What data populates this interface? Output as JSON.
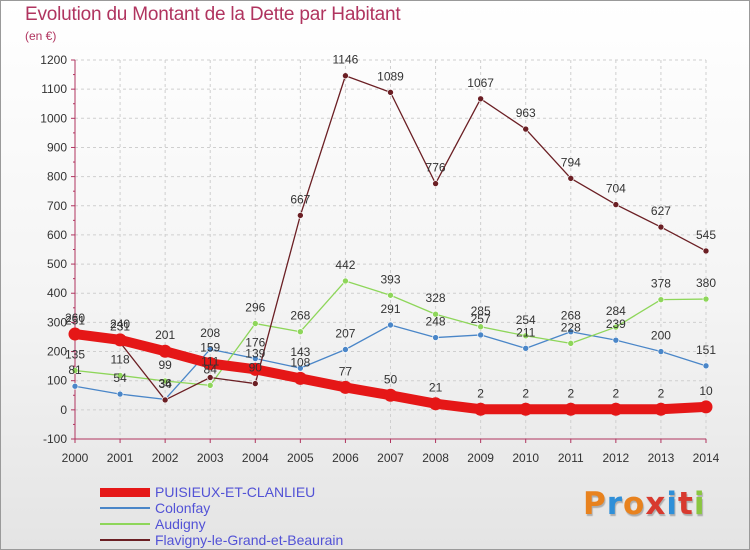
{
  "title": "Evolution du Montant de la Dette par Habitant",
  "unit": "(en €)",
  "logo": {
    "text": "Proxiti",
    "colors": [
      "#e8821e",
      "#2f8fd8",
      "#e8821e",
      "#d83a2f",
      "#2f8fd8",
      "#d83a2f",
      "#8ac640"
    ]
  },
  "chart_data": {
    "type": "line",
    "x": [
      "2000",
      "2001",
      "2002",
      "2003",
      "2004",
      "2005",
      "2006",
      "2007",
      "2008",
      "2009",
      "2010",
      "2011",
      "2012",
      "2013",
      "2014"
    ],
    "ylim": [
      -100,
      1200
    ],
    "yticks": [
      "-100",
      "0",
      "100",
      "200",
      "300",
      "400",
      "500",
      "600",
      "700",
      "800",
      "900",
      "1000",
      "1100",
      "1200"
    ],
    "grid": true,
    "legend_position": "bottom-left",
    "series": [
      {
        "name": "PUISIEUX-ET-CLANLIEU",
        "color": "#e51717",
        "values": [
          260,
          240,
          201,
          159,
          139,
          108,
          77,
          50,
          21,
          2,
          2,
          2,
          2,
          2,
          10
        ],
        "labels": [
          "260",
          "240",
          "201",
          "159",
          "139",
          "108",
          "77",
          "50",
          "21",
          "2",
          "2",
          "2",
          "2",
          "2",
          "10"
        ]
      },
      {
        "name": "Colonfay",
        "color": "#4a86c8",
        "values": [
          81,
          54,
          36,
          208,
          176,
          143,
          207,
          291,
          248,
          257,
          211,
          268,
          239,
          200,
          151
        ],
        "labels": [
          "81",
          "54",
          "36",
          "208",
          "176",
          "143",
          "207",
          "291",
          "248",
          "257",
          "211",
          "268",
          "239",
          "200",
          "151"
        ]
      },
      {
        "name": "Audigny",
        "color": "#8ed65a",
        "values": [
          135,
          118,
          99,
          84,
          296,
          268,
          442,
          393,
          328,
          285,
          254,
          228,
          284,
          378,
          380
        ],
        "labels": [
          "135",
          "118",
          "99",
          "84",
          "296",
          "268",
          "442",
          "393",
          "328",
          "285",
          "254",
          "228",
          "284",
          "378",
          "380"
        ]
      },
      {
        "name": "Flavigny-le-Grand-et-Beaurain",
        "color": "#6b1f24",
        "values": [
          251,
          231,
          34,
          111,
          90,
          667,
          1146,
          1089,
          776,
          1067,
          963,
          794,
          704,
          627,
          545
        ],
        "labels": [
          "251",
          "231",
          "34",
          "111",
          "90",
          "667",
          "1146",
          "1089",
          "776",
          "1067",
          "963",
          "794",
          "704",
          "627",
          "545"
        ]
      }
    ]
  }
}
